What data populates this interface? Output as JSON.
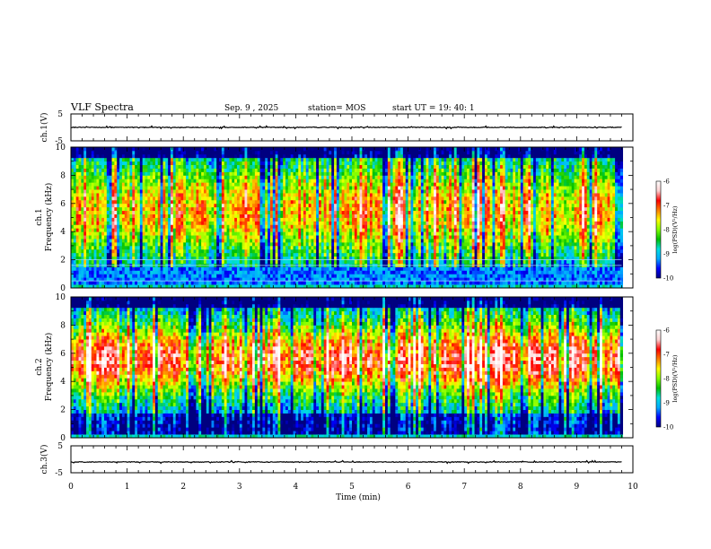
{
  "header": {
    "title": "VLF Spectra",
    "date": "Sep. 9 , 2025",
    "station": "station= MOS",
    "start": "start  UT =  19: 40: 1"
  },
  "chart_data": [
    {
      "type": "line",
      "panel": "ch1-waveform",
      "ylabel": "ch.1(V)",
      "yticks": [
        "5",
        "-5"
      ],
      "ylim": [
        -5,
        5
      ],
      "xlim": [
        0,
        10
      ],
      "level": 0,
      "end_time_min": 9.8
    },
    {
      "type": "heatmap",
      "panel": "ch1-spectrogram",
      "ylabel_top": "ch.1",
      "ylabel": "Frequency (kHz)",
      "yticks": [
        "0",
        "2",
        "4",
        "6",
        "8",
        "10"
      ],
      "ylim": [
        0,
        10
      ],
      "xlim": [
        0,
        10
      ],
      "colorbar": {
        "label": "log(PSD)(V²/Hz)",
        "ticks": [
          "-6",
          "-7",
          "-8",
          "-9",
          "-10"
        ],
        "range": [
          -10,
          -6
        ]
      },
      "seed": 11,
      "center_khz": 5.5,
      "spread_khz": 3.4,
      "peak_level": -7.6,
      "stripes": true,
      "band_limits_khz": [
        0.3,
        1.6
      ]
    },
    {
      "type": "heatmap",
      "panel": "ch2-spectrogram",
      "ylabel_top": "ch.2",
      "ylabel": "Frequency (kHz)",
      "yticks": [
        "0",
        "2",
        "4",
        "6",
        "8",
        "10"
      ],
      "ylim": [
        0,
        10
      ],
      "xlim": [
        0,
        10
      ],
      "colorbar": {
        "label": "log(PSD)(V²/Hz)",
        "ticks": [
          "-6",
          "-7",
          "-8",
          "-9",
          "-10"
        ],
        "range": [
          -10,
          -6
        ]
      },
      "seed": 37,
      "center_khz": 5.6,
      "spread_khz": 2.6,
      "peak_level": -7.0,
      "stripes": false,
      "band_limits_khz": [
        0.3,
        1.8
      ]
    },
    {
      "type": "line",
      "panel": "ch3-waveform",
      "ylabel": "ch.3(V)",
      "yticks": [
        "5",
        "-5"
      ],
      "ylim": [
        -5,
        5
      ],
      "xlim": [
        0,
        10
      ],
      "level": -1,
      "end_time_min": 9.8
    }
  ],
  "xaxis": {
    "label": "Time  (min)",
    "ticks": [
      "0",
      "1",
      "2",
      "3",
      "4",
      "5",
      "6",
      "7",
      "8",
      "9",
      "10"
    ]
  },
  "colors": {
    "colormap": [
      "#000080",
      "#0000ff",
      "#00aaff",
      "#00e0e0",
      "#00c000",
      "#80ff00",
      "#ffff00",
      "#ff8000",
      "#ff0000",
      "#ffd0d0",
      "#ffffff"
    ]
  }
}
